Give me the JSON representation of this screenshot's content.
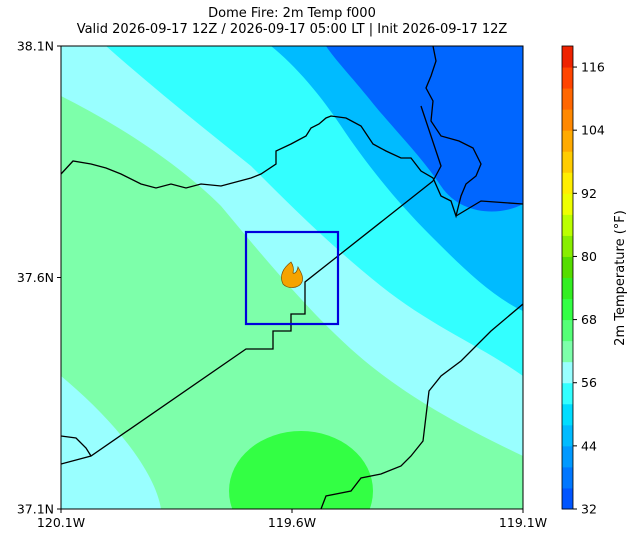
{
  "title": "Dome Fire: 2m Temp f000",
  "subtitle": "Valid 2026-09-17 12Z / 2026-09-17 05:00 LT | Init 2026-09-17 12Z",
  "map": {
    "xlim": [
      -120.1,
      -119.1
    ],
    "xticks": [
      {
        "value": -120.1,
        "label": "120.1W"
      },
      {
        "value": -119.6,
        "label": "119.6W"
      },
      {
        "value": -119.1,
        "label": "119.1W"
      }
    ],
    "ylim": [
      37.1,
      38.1
    ],
    "yticks": [
      {
        "value": 37.1,
        "label": "37.1N"
      },
      {
        "value": 37.6,
        "label": "37.6N"
      },
      {
        "value": 38.1,
        "label": "38.1N"
      }
    ]
  },
  "colorbar": {
    "label": "2m Temperature (°F)",
    "lim": [
      32,
      120
    ],
    "ticks": [
      32,
      44,
      56,
      68,
      80,
      92,
      104,
      116
    ],
    "colors": [
      "#0055ff",
      "#0077ff",
      "#0099ff",
      "#00bbff",
      "#00ddff",
      "#33ffff",
      "#99ffff",
      "#7dffaa",
      "#55ff77",
      "#33ff44",
      "#33ee22",
      "#55dd00",
      "#88ee00",
      "#bbff00",
      "#eeff00",
      "#ffee00",
      "#ffcc00",
      "#ffaa00",
      "#ff8800",
      "#ff6600",
      "#ff4400",
      "#ee2200"
    ]
  }
}
